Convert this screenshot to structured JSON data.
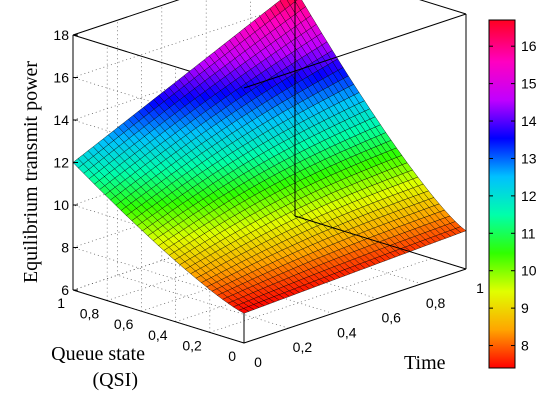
{
  "chart_data": {
    "type": "surface3d",
    "title": "",
    "xlabel": "Time",
    "ylabel": "Queue state (QSI)",
    "ylabel_lines": [
      "Queue state",
      "(QSI)"
    ],
    "zlabel": "Equilibrium transmit power",
    "x_ticks": [
      "0",
      "0,2",
      "0,4",
      "0,6",
      "0,8",
      "1"
    ],
    "y_ticks": [
      "0",
      "0,2",
      "0,4",
      "0,6",
      "0,8",
      "1"
    ],
    "z_ticks": [
      "6",
      "8",
      "10",
      "12",
      "14",
      "16",
      "18"
    ],
    "xlim": [
      0,
      1
    ],
    "ylim": [
      0,
      1
    ],
    "zlim": [
      6,
      18
    ],
    "grid": true,
    "colormap": "hsv",
    "colorbar": {
      "range": [
        7.4,
        16.7
      ],
      "ticks": [
        "8",
        "9",
        "10",
        "11",
        "12",
        "13",
        "14",
        "15",
        "16"
      ],
      "stops": [
        "#ff0000",
        "#ffa500",
        "#e0ff00",
        "#30ff00",
        "#00ffaa",
        "#00c0ff",
        "#0000ff",
        "#c000ff",
        "#ff00c0",
        "#ff0020"
      ]
    },
    "surface": {
      "description_points": [
        {
          "time": 0,
          "qsi": 0,
          "power": 7.4
        },
        {
          "time": 1,
          "qsi": 0,
          "power": 7.8
        },
        {
          "time": 0,
          "qsi": 1,
          "power": 12.0
        },
        {
          "time": 1,
          "qsi": 1,
          "power": 16.7
        }
      ]
    }
  }
}
